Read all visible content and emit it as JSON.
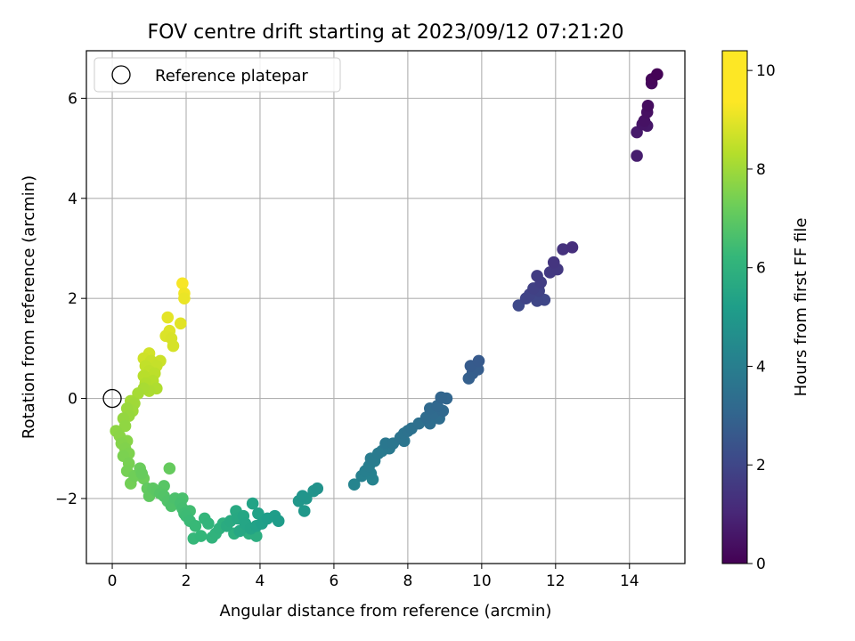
{
  "chart_data": {
    "type": "scatter",
    "title": "FOV centre drift starting at 2023/09/12 07:21:20",
    "xlabel": "Angular distance from reference (arcmin)",
    "ylabel": "Rotation from reference (arcmin)",
    "xlim": [
      -0.7,
      15.5
    ],
    "ylim": [
      -3.3,
      6.95
    ],
    "xticks": [
      0,
      2,
      4,
      6,
      8,
      10,
      12,
      14
    ],
    "yticks": [
      -2,
      0,
      2,
      4,
      6
    ],
    "xtick_labels": [
      "0",
      "2",
      "4",
      "6",
      "8",
      "10",
      "12",
      "14"
    ],
    "ytick_labels": [
      "−2",
      "0",
      "2",
      "4",
      "6"
    ],
    "grid": true,
    "colormap": "viridis",
    "colorbar": {
      "label": "Hours from first FF file",
      "range": [
        0,
        10.4
      ],
      "ticks": [
        0,
        2,
        4,
        6,
        8,
        10
      ],
      "tick_labels": [
        "0",
        "2",
        "4",
        "6",
        "8",
        "10"
      ]
    },
    "legend": {
      "position": "top-left",
      "entries": [
        {
          "label": "Reference platepar",
          "marker": "open-circle",
          "color": "#000000"
        }
      ]
    },
    "reference_point": {
      "x": 0,
      "y": 0
    },
    "series": [
      {
        "points": [
          {
            "x": 14.75,
            "y": 6.48,
            "c": 0.05
          },
          {
            "x": 14.6,
            "y": 6.38,
            "c": 0.15
          },
          {
            "x": 14.6,
            "y": 6.3,
            "c": 0.25
          },
          {
            "x": 14.5,
            "y": 5.85,
            "c": 0.35
          },
          {
            "x": 14.48,
            "y": 5.72,
            "c": 0.45
          },
          {
            "x": 14.4,
            "y": 5.55,
            "c": 0.5
          },
          {
            "x": 14.35,
            "y": 5.48,
            "c": 0.6
          },
          {
            "x": 14.48,
            "y": 5.45,
            "c": 0.65
          },
          {
            "x": 14.2,
            "y": 5.32,
            "c": 0.75
          },
          {
            "x": 14.2,
            "y": 4.85,
            "c": 0.85
          },
          {
            "x": 12.45,
            "y": 3.02,
            "c": 1.4
          },
          {
            "x": 12.2,
            "y": 2.98,
            "c": 1.5
          },
          {
            "x": 11.95,
            "y": 2.72,
            "c": 1.6
          },
          {
            "x": 12.05,
            "y": 2.58,
            "c": 1.7
          },
          {
            "x": 11.85,
            "y": 2.52,
            "c": 1.75
          },
          {
            "x": 11.5,
            "y": 2.45,
            "c": 1.85
          },
          {
            "x": 11.6,
            "y": 2.32,
            "c": 1.9
          },
          {
            "x": 11.4,
            "y": 2.2,
            "c": 2.0
          },
          {
            "x": 11.55,
            "y": 2.15,
            "c": 2.05
          },
          {
            "x": 11.3,
            "y": 2.08,
            "c": 2.1
          },
          {
            "x": 11.2,
            "y": 2.0,
            "c": 2.15
          },
          {
            "x": 11.5,
            "y": 1.95,
            "c": 2.2
          },
          {
            "x": 11.7,
            "y": 1.97,
            "c": 2.25
          },
          {
            "x": 11.0,
            "y": 1.86,
            "c": 2.3
          },
          {
            "x": 9.92,
            "y": 0.75,
            "c": 2.95
          },
          {
            "x": 9.7,
            "y": 0.65,
            "c": 3.0
          },
          {
            "x": 9.9,
            "y": 0.58,
            "c": 3.05
          },
          {
            "x": 9.75,
            "y": 0.5,
            "c": 3.1
          },
          {
            "x": 9.65,
            "y": 0.4,
            "c": 3.15
          },
          {
            "x": 8.9,
            "y": 0.02,
            "c": 3.35
          },
          {
            "x": 9.05,
            "y": 0.0,
            "c": 3.4
          },
          {
            "x": 8.8,
            "y": -0.15,
            "c": 3.45
          },
          {
            "x": 8.95,
            "y": -0.25,
            "c": 3.5
          },
          {
            "x": 8.6,
            "y": -0.2,
            "c": 3.55
          },
          {
            "x": 8.7,
            "y": -0.3,
            "c": 3.6
          },
          {
            "x": 8.5,
            "y": -0.38,
            "c": 3.65
          },
          {
            "x": 8.85,
            "y": -0.4,
            "c": 3.7
          },
          {
            "x": 8.6,
            "y": -0.5,
            "c": 3.75
          },
          {
            "x": 8.3,
            "y": -0.5,
            "c": 3.8
          },
          {
            "x": 8.1,
            "y": -0.6,
            "c": 3.85
          },
          {
            "x": 8.0,
            "y": -0.65,
            "c": 3.9
          },
          {
            "x": 7.9,
            "y": -0.7,
            "c": 3.95
          },
          {
            "x": 7.8,
            "y": -0.78,
            "c": 4.0
          },
          {
            "x": 7.9,
            "y": -0.85,
            "c": 4.05
          },
          {
            "x": 7.6,
            "y": -0.9,
            "c": 4.1
          },
          {
            "x": 7.4,
            "y": -0.9,
            "c": 4.15
          },
          {
            "x": 7.5,
            "y": -1.0,
            "c": 4.2
          },
          {
            "x": 7.3,
            "y": -1.05,
            "c": 4.25
          },
          {
            "x": 7.2,
            "y": -1.1,
            "c": 4.3
          },
          {
            "x": 7.0,
            "y": -1.2,
            "c": 4.35
          },
          {
            "x": 7.1,
            "y": -1.25,
            "c": 4.4
          },
          {
            "x": 6.95,
            "y": -1.35,
            "c": 4.45
          },
          {
            "x": 6.85,
            "y": -1.45,
            "c": 4.5
          },
          {
            "x": 6.75,
            "y": -1.55,
            "c": 4.55
          },
          {
            "x": 7.0,
            "y": -1.5,
            "c": 4.6
          },
          {
            "x": 7.05,
            "y": -1.62,
            "c": 4.65
          },
          {
            "x": 6.55,
            "y": -1.72,
            "c": 4.7
          },
          {
            "x": 5.55,
            "y": -1.8,
            "c": 5.3
          },
          {
            "x": 5.45,
            "y": -1.85,
            "c": 5.35
          },
          {
            "x": 5.15,
            "y": -1.95,
            "c": 5.4
          },
          {
            "x": 5.25,
            "y": -2.0,
            "c": 5.45
          },
          {
            "x": 5.05,
            "y": -2.05,
            "c": 5.5
          },
          {
            "x": 5.2,
            "y": -2.25,
            "c": 5.55
          },
          {
            "x": 4.5,
            "y": -2.45,
            "c": 5.7
          },
          {
            "x": 4.4,
            "y": -2.35,
            "c": 5.75
          },
          {
            "x": 4.2,
            "y": -2.4,
            "c": 5.8
          },
          {
            "x": 4.05,
            "y": -2.5,
            "c": 5.85
          },
          {
            "x": 3.95,
            "y": -2.3,
            "c": 5.9
          },
          {
            "x": 3.9,
            "y": -2.55,
            "c": 5.95
          },
          {
            "x": 3.8,
            "y": -2.1,
            "c": 6.0
          },
          {
            "x": 3.75,
            "y": -2.6,
            "c": 6.05
          },
          {
            "x": 3.6,
            "y": -2.5,
            "c": 6.1
          },
          {
            "x": 3.55,
            "y": -2.35,
            "c": 6.15
          },
          {
            "x": 3.45,
            "y": -2.65,
            "c": 6.2
          },
          {
            "x": 3.4,
            "y": -2.4,
            "c": 6.25
          },
          {
            "x": 3.35,
            "y": -2.25,
            "c": 6.3
          },
          {
            "x": 3.2,
            "y": -2.45,
            "c": 6.35
          },
          {
            "x": 3.1,
            "y": -2.55,
            "c": 6.4
          },
          {
            "x": 3.9,
            "y": -2.75,
            "c": 6.45
          },
          {
            "x": 3.7,
            "y": -2.7,
            "c": 6.5
          },
          {
            "x": 3.3,
            "y": -2.7,
            "c": 6.55
          },
          {
            "x": 3.0,
            "y": -2.5,
            "c": 6.6
          },
          {
            "x": 2.9,
            "y": -2.6,
            "c": 6.65
          },
          {
            "x": 2.8,
            "y": -2.7,
            "c": 6.7
          },
          {
            "x": 2.7,
            "y": -2.78,
            "c": 6.75
          },
          {
            "x": 2.6,
            "y": -2.5,
            "c": 6.8
          },
          {
            "x": 2.5,
            "y": -2.4,
            "c": 6.85
          },
          {
            "x": 2.4,
            "y": -2.75,
            "c": 6.9
          },
          {
            "x": 2.2,
            "y": -2.8,
            "c": 6.95
          },
          {
            "x": 2.25,
            "y": -2.55,
            "c": 7.0
          },
          {
            "x": 2.1,
            "y": -2.45,
            "c": 7.05
          },
          {
            "x": 2.0,
            "y": -2.35,
            "c": 7.1
          },
          {
            "x": 1.95,
            "y": -2.3,
            "c": 7.15
          },
          {
            "x": 2.1,
            "y": -2.25,
            "c": 7.2
          },
          {
            "x": 1.9,
            "y": -2.2,
            "c": 7.25
          },
          {
            "x": 1.85,
            "y": -2.1,
            "c": 7.3
          },
          {
            "x": 1.9,
            "y": -2.0,
            "c": 7.35
          },
          {
            "x": 1.7,
            "y": -2.0,
            "c": 7.4
          },
          {
            "x": 1.6,
            "y": -2.15,
            "c": 7.45
          },
          {
            "x": 1.5,
            "y": -2.05,
            "c": 7.5
          },
          {
            "x": 1.4,
            "y": -1.95,
            "c": 7.55
          },
          {
            "x": 1.3,
            "y": -1.9,
            "c": 7.6
          },
          {
            "x": 1.4,
            "y": -1.75,
            "c": 7.65
          },
          {
            "x": 1.2,
            "y": -1.85,
            "c": 7.7
          },
          {
            "x": 1.1,
            "y": -1.8,
            "c": 7.75
          },
          {
            "x": 1.0,
            "y": -1.95,
            "c": 7.8
          },
          {
            "x": 0.95,
            "y": -1.8,
            "c": 7.85
          },
          {
            "x": 1.55,
            "y": -1.4,
            "c": 7.9
          },
          {
            "x": 0.8,
            "y": -1.5,
            "c": 7.95
          },
          {
            "x": 0.75,
            "y": -1.4,
            "c": 8.0
          },
          {
            "x": 0.85,
            "y": -1.6,
            "c": 8.05
          },
          {
            "x": 0.6,
            "y": -1.55,
            "c": 8.1
          },
          {
            "x": 0.5,
            "y": -1.7,
            "c": 8.15
          },
          {
            "x": 0.4,
            "y": -1.45,
            "c": 8.2
          },
          {
            "x": 0.45,
            "y": -1.3,
            "c": 8.25
          },
          {
            "x": 0.3,
            "y": -1.15,
            "c": 8.3
          },
          {
            "x": 0.45,
            "y": -1.1,
            "c": 8.35
          },
          {
            "x": 0.35,
            "y": -1.0,
            "c": 8.4
          },
          {
            "x": 0.25,
            "y": -0.9,
            "c": 8.45
          },
          {
            "x": 0.4,
            "y": -0.85,
            "c": 8.5
          },
          {
            "x": 0.2,
            "y": -0.75,
            "c": 8.55
          },
          {
            "x": 0.1,
            "y": -0.65,
            "c": 8.6
          },
          {
            "x": 0.35,
            "y": -0.55,
            "c": 8.65
          },
          {
            "x": 0.3,
            "y": -0.4,
            "c": 8.7
          },
          {
            "x": 0.45,
            "y": -0.35,
            "c": 8.75
          },
          {
            "x": 0.4,
            "y": -0.2,
            "c": 8.8
          },
          {
            "x": 0.55,
            "y": -0.25,
            "c": 8.85
          },
          {
            "x": 0.6,
            "y": -0.1,
            "c": 8.9
          },
          {
            "x": 0.5,
            "y": -0.05,
            "c": 8.95
          },
          {
            "x": 0.7,
            "y": 0.1,
            "c": 9.0
          },
          {
            "x": 0.85,
            "y": 0.2,
            "c": 9.05
          },
          {
            "x": 1.0,
            "y": 0.15,
            "c": 9.1
          },
          {
            "x": 1.2,
            "y": 0.2,
            "c": 9.15
          },
          {
            "x": 0.9,
            "y": 0.3,
            "c": 9.2
          },
          {
            "x": 1.1,
            "y": 0.35,
            "c": 9.25
          },
          {
            "x": 0.85,
            "y": 0.45,
            "c": 9.3
          },
          {
            "x": 1.15,
            "y": 0.5,
            "c": 9.35
          },
          {
            "x": 1.0,
            "y": 0.55,
            "c": 9.4
          },
          {
            "x": 0.9,
            "y": 0.65,
            "c": 9.45
          },
          {
            "x": 1.2,
            "y": 0.65,
            "c": 9.5
          },
          {
            "x": 1.05,
            "y": 0.75,
            "c": 9.55
          },
          {
            "x": 1.3,
            "y": 0.75,
            "c": 9.6
          },
          {
            "x": 0.85,
            "y": 0.8,
            "c": 9.65
          },
          {
            "x": 1.0,
            "y": 0.9,
            "c": 9.7
          },
          {
            "x": 1.65,
            "y": 1.05,
            "c": 9.75
          },
          {
            "x": 1.6,
            "y": 1.2,
            "c": 9.8
          },
          {
            "x": 1.45,
            "y": 1.25,
            "c": 9.85
          },
          {
            "x": 1.55,
            "y": 1.35,
            "c": 9.9
          },
          {
            "x": 1.85,
            "y": 1.5,
            "c": 9.95
          },
          {
            "x": 1.5,
            "y": 1.62,
            "c": 10.0
          },
          {
            "x": 1.95,
            "y": 2.0,
            "c": 10.1
          },
          {
            "x": 1.95,
            "y": 2.1,
            "c": 10.2
          },
          {
            "x": 1.9,
            "y": 2.3,
            "c": 10.3
          }
        ]
      }
    ]
  }
}
